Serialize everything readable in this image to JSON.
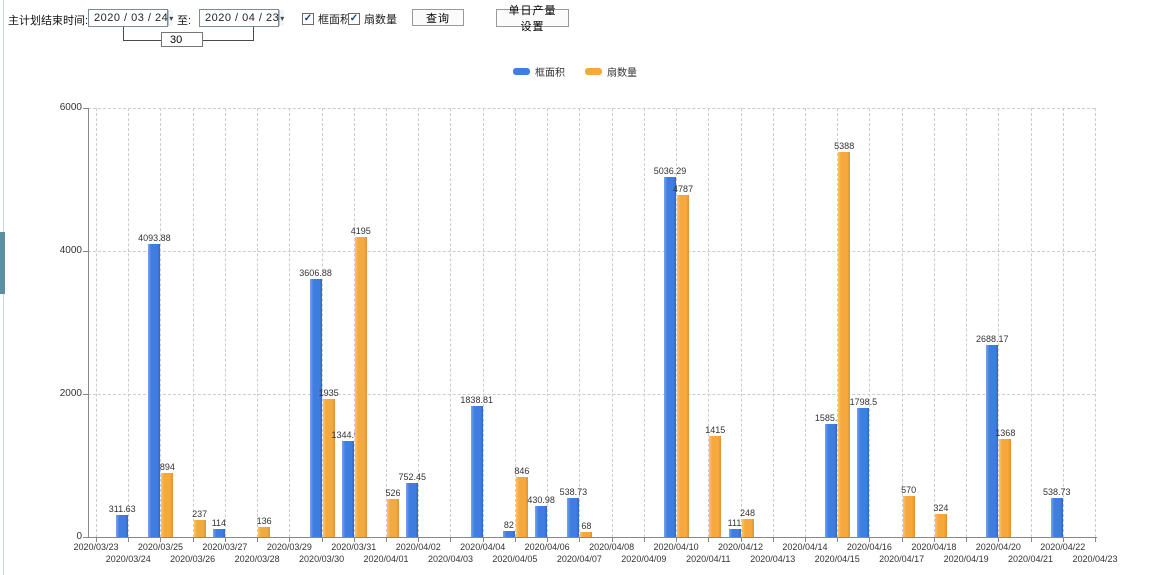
{
  "toolbar": {
    "label": "主计划结束时间:",
    "date_from": "2020 / 03 / 24",
    "to_label": "至:",
    "date_to": "2020 / 04 / 23",
    "span_value": "30",
    "checkbox1": "框面积",
    "checkbox2": "扇数量",
    "query_button": "查询",
    "daily_output_button": "单日产量设置"
  },
  "chart_data": {
    "type": "bar",
    "title": "",
    "xlabel": "",
    "ylabel": "",
    "ylim": [
      0,
      6000
    ],
    "yticks": [
      0,
      2000,
      4000,
      6000
    ],
    "grid": "dashed",
    "legend_position": "top",
    "categories": [
      "2020/03/23",
      "2020/03/24",
      "2020/03/25",
      "2020/03/26",
      "2020/03/27",
      "2020/03/28",
      "2020/03/29",
      "2020/03/30",
      "2020/03/31",
      "2020/04/01",
      "2020/04/02",
      "2020/04/03",
      "2020/04/04",
      "2020/04/05",
      "2020/04/06",
      "2020/04/07",
      "2020/04/08",
      "2020/04/09",
      "2020/04/10",
      "2020/04/11",
      "2020/04/12",
      "2020/04/13",
      "2020/04/14",
      "2020/04/15",
      "2020/04/16",
      "2020/04/17",
      "2020/04/18",
      "2020/04/19",
      "2020/04/20",
      "2020/04/21",
      "2020/04/22",
      "2020/04/23"
    ],
    "series": [
      {
        "name": "框面积",
        "color": "#3F7EE0",
        "values": [
          null,
          311.63,
          4093.88,
          null,
          114,
          null,
          null,
          3606.88,
          1344.95,
          null,
          752.45,
          null,
          1838.81,
          82,
          430.98,
          538.73,
          null,
          null,
          5036.29,
          null,
          111,
          null,
          null,
          1585.96,
          1798.5,
          null,
          null,
          null,
          2688.17,
          null,
          538.73,
          null
        ]
      },
      {
        "name": "扇数量",
        "color": "#F4A83D",
        "values": [
          null,
          null,
          894,
          237,
          null,
          136,
          null,
          1935,
          4195,
          526,
          null,
          null,
          null,
          846,
          null,
          68,
          null,
          null,
          4787,
          1415,
          248,
          null,
          null,
          5388,
          null,
          570,
          324,
          null,
          1368,
          null,
          null,
          null
        ]
      }
    ]
  }
}
